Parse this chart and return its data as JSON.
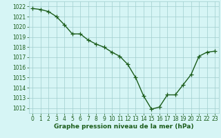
{
  "x": [
    0,
    1,
    2,
    3,
    4,
    5,
    6,
    7,
    8,
    9,
    10,
    11,
    12,
    13,
    14,
    15,
    16,
    17,
    18,
    19,
    20,
    21,
    22,
    23
  ],
  "y": [
    1021.8,
    1021.7,
    1021.5,
    1021.0,
    1020.2,
    1019.3,
    1019.3,
    1018.7,
    1018.3,
    1018.0,
    1017.5,
    1017.1,
    1016.3,
    1015.0,
    1013.2,
    1011.9,
    1012.1,
    1013.3,
    1013.3,
    1014.3,
    1015.3,
    1017.1,
    1017.5,
    1017.6
  ],
  "line_color": "#1a5c1a",
  "marker": "+",
  "marker_size": 4,
  "linewidth": 1.0,
  "bg_color": "#d6f5f5",
  "grid_color": "#a0cece",
  "tick_label_color": "#1a5c1a",
  "xlabel": "Graphe pression niveau de la mer (hPa)",
  "xlabel_color": "#1a5c1a",
  "xlabel_fontsize": 6.5,
  "tick_fontsize": 5.5,
  "ylim": [
    1011.5,
    1022.5
  ],
  "yticks": [
    1012,
    1013,
    1014,
    1015,
    1016,
    1017,
    1018,
    1019,
    1020,
    1021,
    1022
  ],
  "xlim": [
    -0.5,
    23.5
  ],
  "xticks": [
    0,
    1,
    2,
    3,
    4,
    5,
    6,
    7,
    8,
    9,
    10,
    11,
    12,
    13,
    14,
    15,
    16,
    17,
    18,
    19,
    20,
    21,
    22,
    23
  ]
}
